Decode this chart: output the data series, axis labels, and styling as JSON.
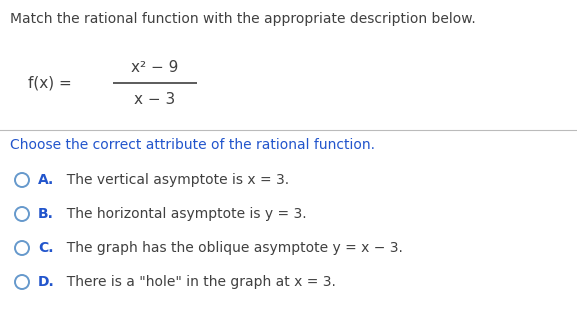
{
  "title": "Match the rational function with the appropriate description below.",
  "function_label": "f(x) =",
  "numerator": "x² − 9",
  "denominator": "x − 3",
  "section_label": "Choose the correct attribute of the rational function.",
  "options": [
    {
      "letter": "A.",
      "text": "  The vertical asymptote is x = 3."
    },
    {
      "letter": "B.",
      "text": "  The horizontal asymptote is y = 3."
    },
    {
      "letter": "C.",
      "text": "  The graph has the oblique asymptote y = x − 3."
    },
    {
      "letter": "D.",
      "text": "  There is a \"hole\" in the graph at x = 3."
    }
  ],
  "bg_color": "#ffffff",
  "title_color": "#404040",
  "section_color": "#2255cc",
  "option_letter_color": "#2255cc",
  "option_text_color": "#404040",
  "circle_edge_color": "#6699cc",
  "divider_color": "#bbbbbb",
  "function_color": "#404040",
  "fig_width": 5.77,
  "fig_height": 3.16,
  "dpi": 100
}
